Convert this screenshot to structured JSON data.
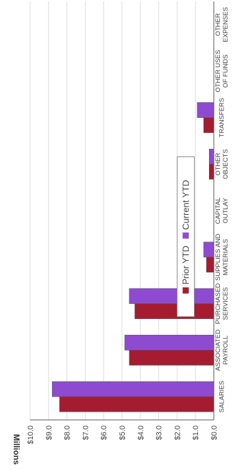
{
  "chart_data": {
    "type": "bar",
    "orientation": "rotated-90",
    "ylabel": "Millions",
    "ylim": [
      0,
      10
    ],
    "tick_labels": [
      "$0.0",
      "$1.0",
      "$2.0",
      "$3.0",
      "$4.0",
      "$5.0",
      "$6.0",
      "$7.0",
      "$8.0",
      "$9.0",
      "$10.0"
    ],
    "tick_values": [
      0,
      1,
      2,
      3,
      4,
      5,
      6,
      7,
      8,
      9,
      10
    ],
    "grid": true,
    "legend_placement": "top",
    "categories": [
      [
        "SALARIES"
      ],
      [
        "ASSOCIATED",
        "PAYROLL"
      ],
      [
        "PURCHASED",
        "SERVICES"
      ],
      [
        "SUPPLIES AND",
        "MATERIALS"
      ],
      [
        "CAPITAL",
        "OUTLAY"
      ],
      [
        "OTHER",
        "OBJECTS"
      ],
      [
        "TRANSFERS"
      ],
      [
        "OTHER USES",
        "OF FUNDS"
      ],
      [
        "OTHER",
        "EXPENSES"
      ]
    ],
    "series": [
      {
        "name": "Prior YTD",
        "color": "#a51c30",
        "values": [
          8.4,
          4.6,
          4.3,
          0.4,
          0,
          0.25,
          0.55,
          0,
          0
        ]
      },
      {
        "name": "Current YTD",
        "color": "#8e4bd1",
        "values": [
          8.8,
          4.85,
          4.6,
          0.55,
          0,
          0.25,
          0.9,
          0,
          0
        ]
      }
    ]
  }
}
